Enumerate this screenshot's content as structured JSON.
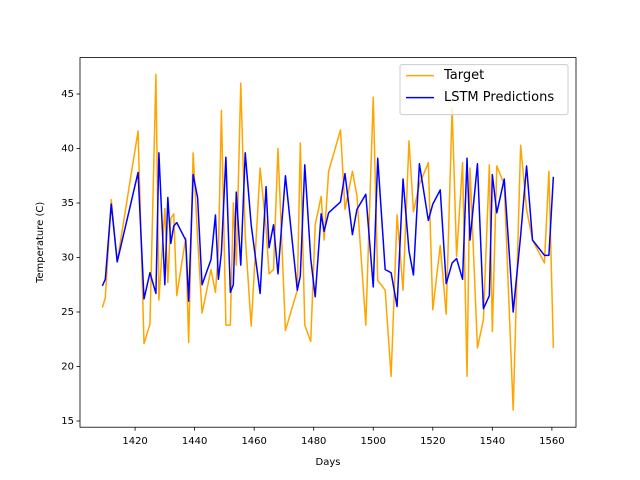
{
  "chart_data": {
    "type": "line",
    "x_label": "Days",
    "y_label": "Temperature (C)",
    "x": [
      1409,
      1410,
      1412,
      1414,
      1421,
      1423,
      1425,
      1427,
      1428,
      1430,
      1431,
      1432,
      1433,
      1434,
      1437,
      1438,
      1439.5,
      1441,
      1442.5,
      1445.5,
      1447,
      1448,
      1449,
      1450.5,
      1452,
      1453,
      1454,
      1455.5,
      1457,
      1459,
      1462,
      1464,
      1465,
      1466.5,
      1468,
      1470.5,
      1474.5,
      1475.5,
      1477,
      1479,
      1480.5,
      1482.5,
      1483.5,
      1485,
      1489,
      1490.5,
      1493,
      1494.5,
      1497.5,
      1500,
      1501.5,
      1504,
      1506,
      1508,
      1510,
      1512,
      1513.5,
      1515.5,
      1518.5,
      1520,
      1522.5,
      1524.5,
      1526.5,
      1528,
      1530,
      1531.5,
      1532.5,
      1535,
      1537,
      1539,
      1540,
      1541.5,
      1544,
      1547,
      1549.5,
      1551.5,
      1553.5,
      1557.5,
      1559,
      1560.5
    ],
    "series": [
      {
        "name": "Target",
        "color": "orange",
        "values": [
          25.4,
          26.3,
          35.3,
          29.6,
          41.6,
          22.1,
          23.9,
          46.8,
          26.1,
          34.5,
          27.7,
          33.6,
          34.0,
          26.5,
          31.8,
          22.2,
          39.6,
          31.8,
          24.9,
          28.9,
          26.8,
          30.7,
          43.5,
          23.8,
          23.8,
          35.0,
          29.3,
          46.0,
          32.0,
          23.7,
          38.2,
          32.7,
          28.5,
          28.9,
          40.0,
          23.3,
          27.0,
          40.5,
          23.8,
          22.3,
          33.0,
          35.6,
          31.6,
          37.9,
          41.7,
          34.4,
          37.9,
          35.7,
          23.8,
          44.7,
          27.9,
          27.0,
          19.1,
          33.9,
          27.0,
          40.7,
          34.2,
          36.7,
          38.7,
          25.2,
          31.1,
          24.8,
          43.7,
          30.1,
          38.7,
          19.1,
          38.2,
          21.7,
          24.3,
          38.5,
          23.2,
          38.4,
          36.7,
          16.0,
          40.3,
          34.4,
          31.6,
          29.5,
          37.9,
          21.7
        ]
      },
      {
        "name": "LSTM Predictions",
        "color": "blue",
        "values": [
          27.4,
          28.0,
          34.9,
          29.6,
          37.8,
          26.2,
          28.6,
          26.7,
          39.6,
          27.5,
          35.5,
          31.3,
          32.9,
          33.2,
          31.6,
          26.0,
          37.6,
          35.5,
          27.5,
          29.8,
          33.9,
          28.0,
          30.5,
          39.2,
          26.8,
          27.5,
          36.0,
          29.3,
          39.6,
          33.0,
          26.7,
          36.5,
          30.9,
          33.0,
          28.5,
          37.5,
          27.0,
          28.3,
          38.5,
          29.9,
          26.4,
          34.0,
          32.4,
          34.1,
          35.1,
          37.7,
          32.1,
          34.4,
          35.8,
          27.3,
          39.1,
          28.9,
          28.6,
          25.5,
          37.2,
          30.6,
          28.4,
          38.6,
          33.4,
          34.9,
          36.2,
          27.6,
          29.5,
          29.9,
          28.0,
          39.1,
          31.6,
          38.6,
          25.3,
          26.5,
          37.6,
          34.1,
          37.2,
          25.0,
          32.0,
          38.4,
          31.6,
          30.2,
          30.2,
          37.4
        ]
      }
    ],
    "xlim": [
      1401.5,
      1568.1
    ],
    "xticks": [
      1420,
      1440,
      1460,
      1480,
      1500,
      1520,
      1540,
      1560
    ],
    "ylim": [
      14.43,
      48.34
    ],
    "yticks": [
      15,
      20,
      25,
      30,
      35,
      40,
      45
    ],
    "legend": "upper right",
    "grid": false
  }
}
